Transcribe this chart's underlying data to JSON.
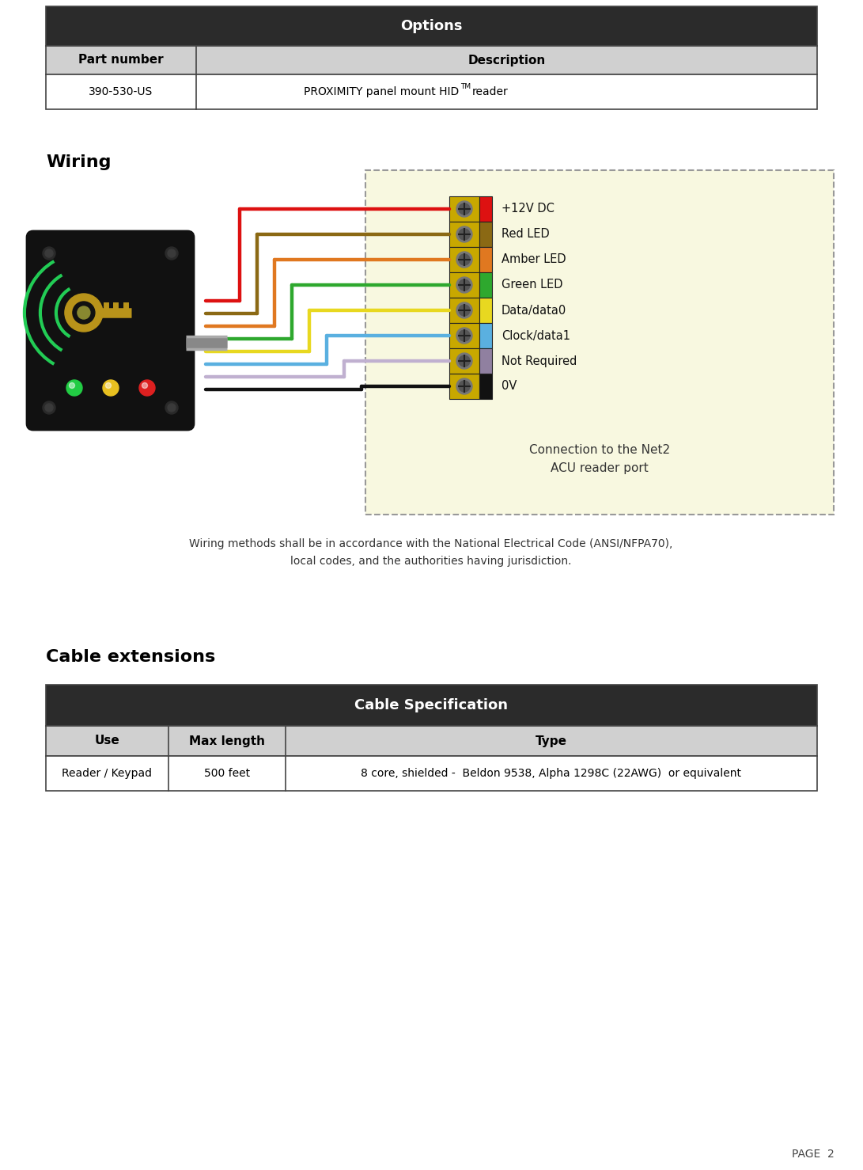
{
  "page_bg": "#ffffff",
  "options_table": {
    "title": "Options",
    "title_bg": "#2b2b2b",
    "title_color": "#ffffff",
    "header_bg": "#d0d0d0",
    "col1_header": "Part number",
    "col2_header": "Description",
    "col1_data": "390-530-US",
    "col2_data_pre": "PROXIMITY panel mount HID",
    "col2_data_sup": "TM",
    "col2_data_post": " reader",
    "row_bg": "#ffffff"
  },
  "wiring_title": "Wiring",
  "wiring_note_line1": "Wiring methods shall be in accordance with the National Electrical Code (ANSI/NFPA70),",
  "wiring_note_line2": "local codes, and the authorities having jurisdiction.",
  "connection_label": "Connection to the Net2\nACU reader port",
  "wire_labels": [
    "+12V DC",
    "Red LED",
    "Amber LED",
    "Green LED",
    "Data/data0",
    "Clock/data1",
    "Not Required",
    "0V"
  ],
  "wire_colors": [
    "#dd1111",
    "#8b6914",
    "#e07820",
    "#2ea82e",
    "#e8d820",
    "#5ab0e0",
    "#c0b0d0",
    "#111111"
  ],
  "terminal_colors": [
    "#dd1111",
    "#8b6914",
    "#e07820",
    "#2ea82e",
    "#e8d820",
    "#5ab0e0",
    "#9080a0",
    "#111111"
  ],
  "cable_table": {
    "title": "Cable Specification",
    "title_bg": "#2b2b2b",
    "title_color": "#ffffff",
    "header_bg": "#d0d0d0",
    "col1_header": "Use",
    "col2_header": "Max length",
    "col3_header": "Type",
    "col1_data": "Reader / Keypad",
    "col2_data": "500 feet",
    "col3_data": "8 core, shielded -  Beldon 9538, Alpha 1298C (22AWG)  or equivalent",
    "row_bg": "#ffffff"
  },
  "cable_extensions_title": "Cable extensions",
  "page_number": "PAGE  2",
  "table_border": "#444444",
  "dashed_box_bg": "#f8f8e0",
  "dashed_box_border": "#999999"
}
